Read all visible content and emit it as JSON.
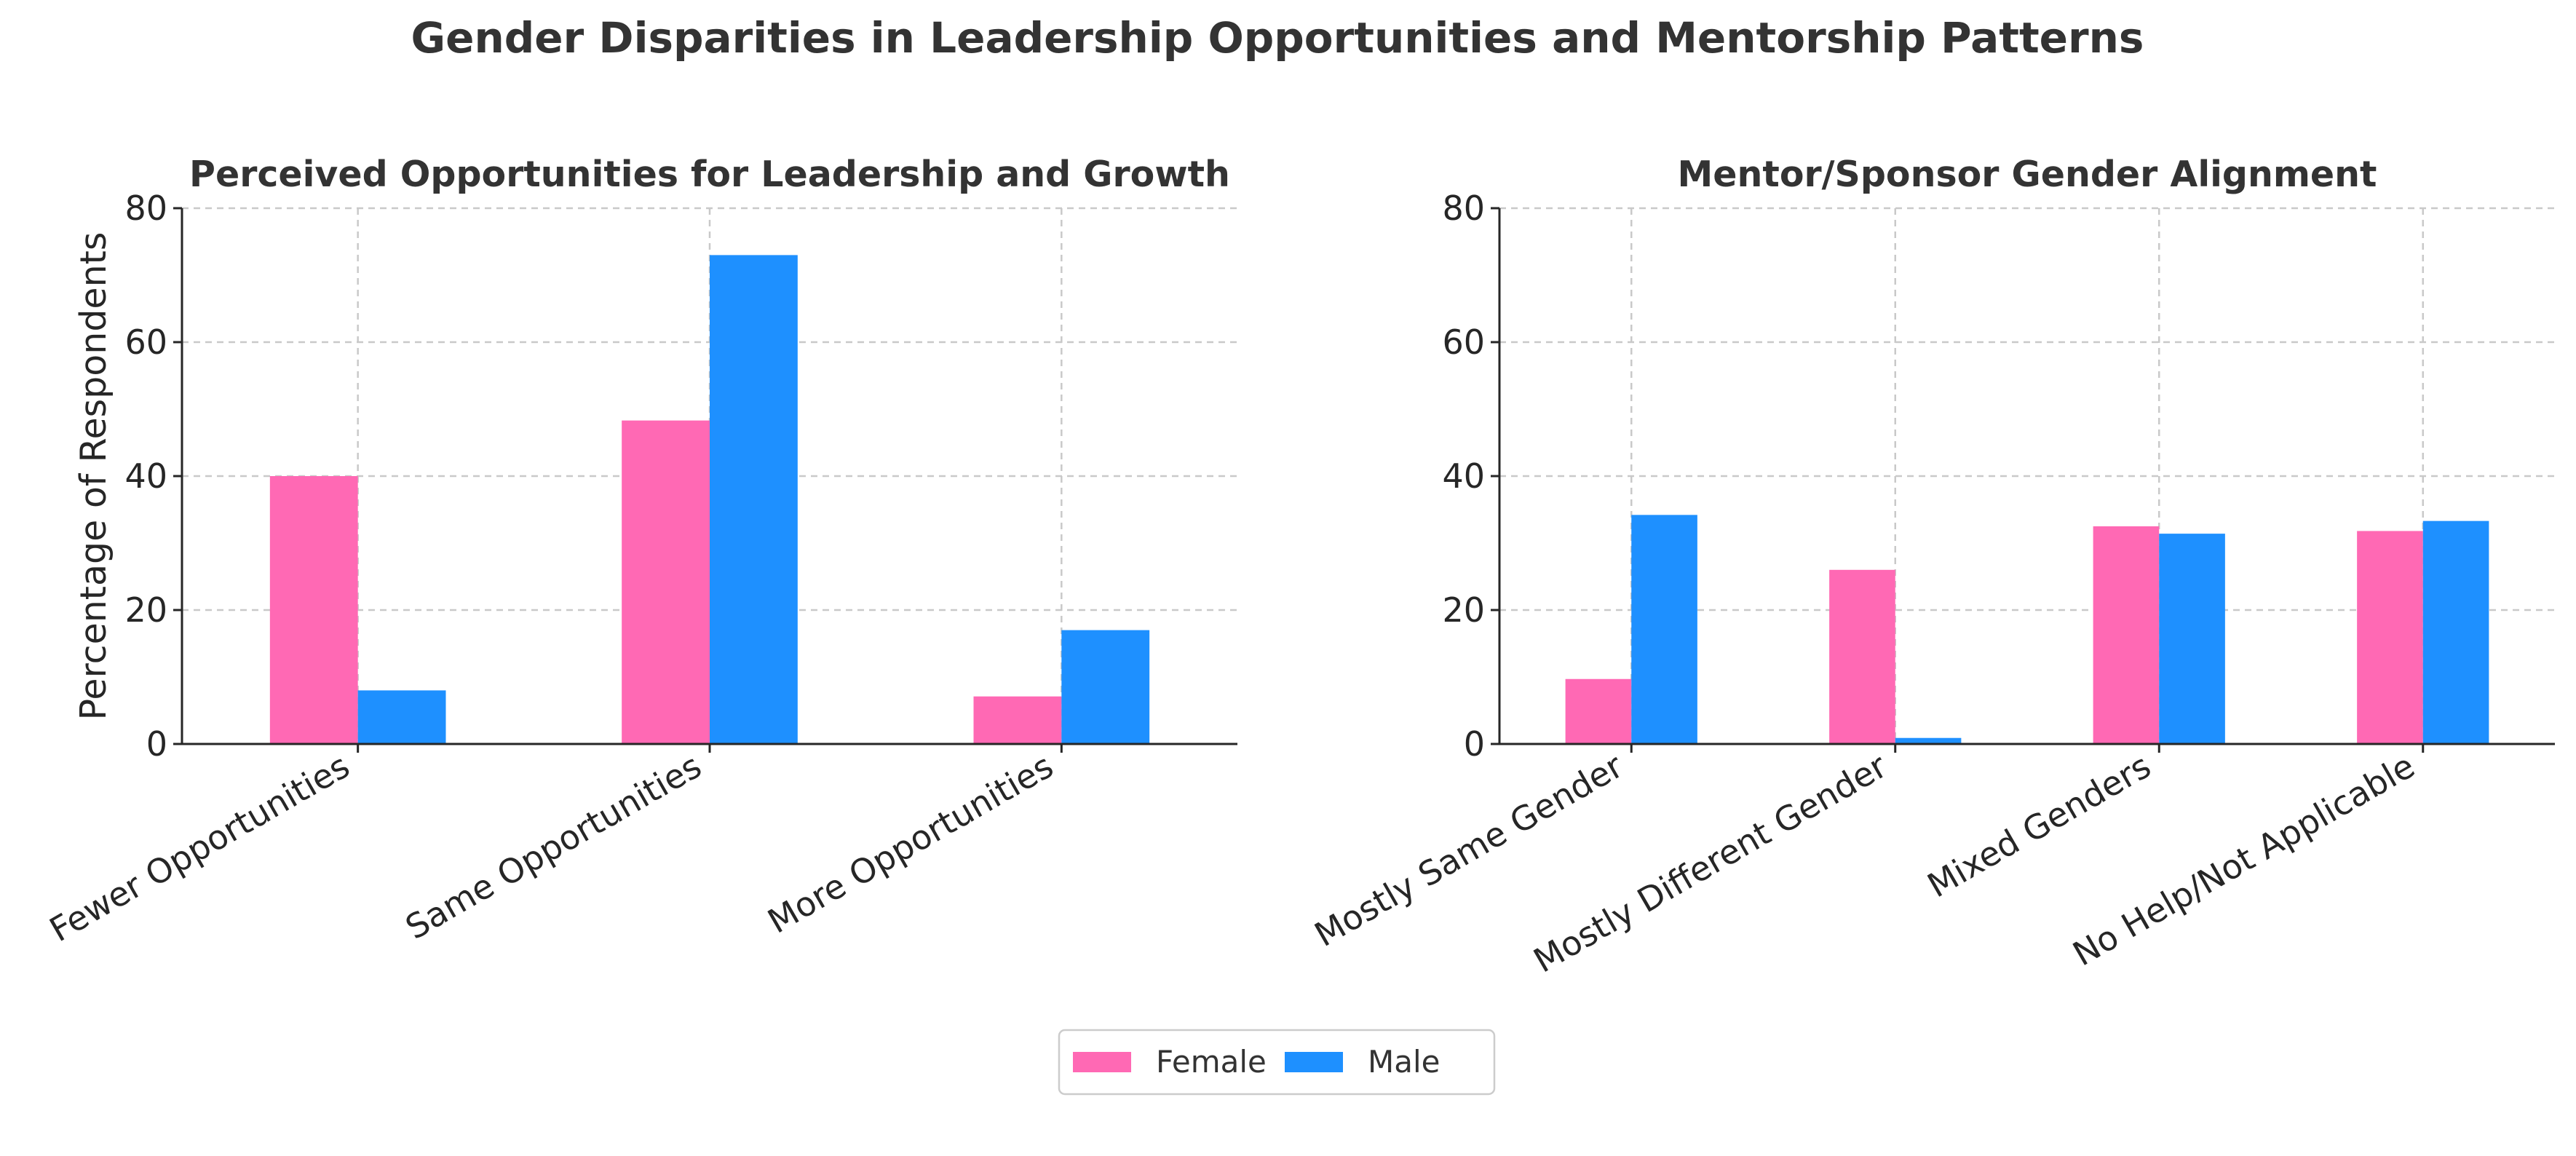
{
  "title": "Gender Disparities in Leadership Opportunities and Mentorship Patterns",
  "colors": {
    "Female": "#ff69b4",
    "Male": "#1e90ff"
  },
  "legend": {
    "position": "bottom-center",
    "entries": [
      "Female",
      "Male"
    ]
  },
  "chart_data": [
    {
      "type": "bar",
      "title": "Perceived Opportunities for Leadership and Growth",
      "xlabel": "",
      "ylabel": "Percentage of Respondents",
      "ylim": [
        0,
        80
      ],
      "yticks": [
        0,
        20,
        40,
        60,
        80
      ],
      "grid": true,
      "categories": [
        "Fewer Opportunities",
        "Same Opportunities",
        "More Opportunities"
      ],
      "series": [
        {
          "name": "Female",
          "values": [
            40.0,
            48.3,
            7.1
          ]
        },
        {
          "name": "Male",
          "values": [
            8.0,
            73.0,
            17.0
          ]
        }
      ]
    },
    {
      "type": "bar",
      "title": "Mentor/Sponsor Gender Alignment",
      "xlabel": "",
      "ylabel": "",
      "ylim": [
        0,
        80
      ],
      "yticks": [
        0,
        20,
        40,
        60,
        80
      ],
      "grid": true,
      "categories": [
        "Mostly Same Gender",
        "Mostly Different Gender",
        "Mixed Genders",
        "No Help/Not Applicable"
      ],
      "series": [
        {
          "name": "Female",
          "values": [
            9.7,
            26.0,
            32.5,
            31.8
          ]
        },
        {
          "name": "Male",
          "values": [
            34.2,
            0.9,
            31.4,
            33.3
          ]
        }
      ]
    }
  ]
}
